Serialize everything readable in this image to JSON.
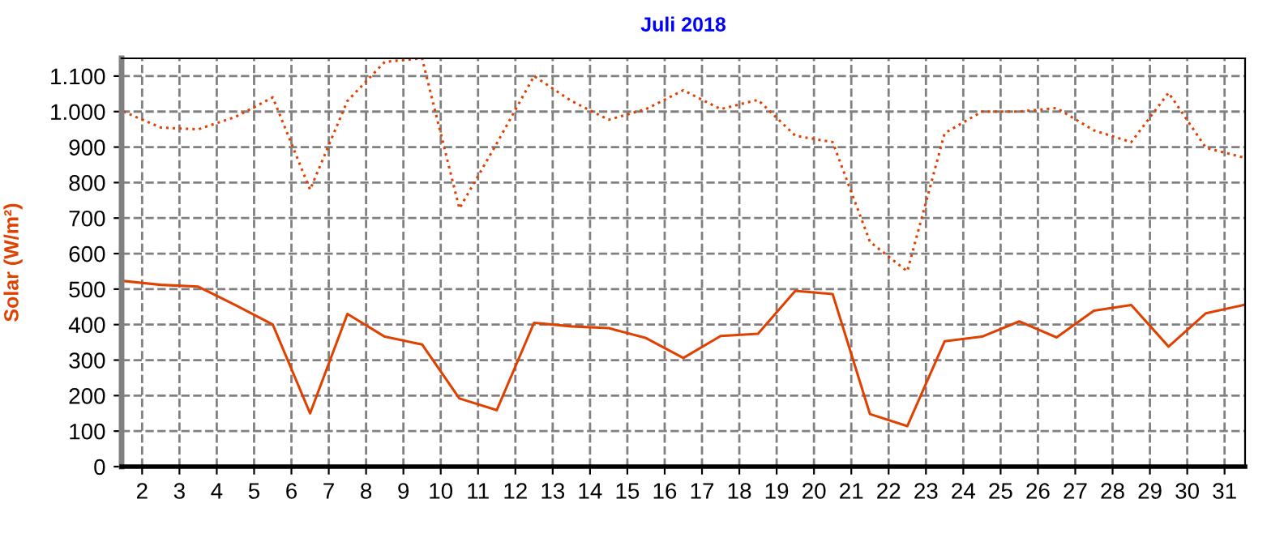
{
  "chart_data": {
    "type": "line",
    "title": "Juli 2018",
    "ylabel": "Solar (W/m²)",
    "x": [
      1.5,
      2.5,
      3.5,
      4.5,
      5.5,
      6.5,
      7.5,
      8.5,
      9.5,
      10.5,
      11.5,
      12.5,
      13.5,
      14.5,
      15.5,
      16.5,
      17.5,
      18.5,
      19.5,
      20.5,
      21.5,
      22.5,
      23.5,
      24.5,
      25.5,
      26.5,
      27.5,
      28.5,
      29.5,
      30.5,
      31.5
    ],
    "series": [
      {
        "color": "#e04000",
        "line_style": "dotted",
        "values": [
          1000,
          955,
          950,
          985,
          1040,
          780,
          1030,
          1140,
          1150,
          727,
          910,
          1100,
          1030,
          977,
          1007,
          1060,
          1007,
          1033,
          932,
          914,
          633,
          550,
          939,
          1000,
          1000,
          1010,
          947,
          914,
          1053,
          898,
          871
        ]
      },
      {
        "color": "#e04000",
        "line_style": "solid",
        "values": [
          523,
          512,
          507,
          455,
          400,
          150,
          430,
          366,
          344,
          192,
          159,
          405,
          395,
          390,
          362,
          306,
          368,
          374,
          495,
          486,
          148,
          114,
          353,
          366,
          409,
          364,
          439,
          455,
          338,
          432,
          455
        ]
      }
    ],
    "xlim": [
      1.45,
      31.55
    ],
    "ylim": [
      0,
      1150
    ],
    "xticks": [
      2,
      3,
      4,
      5,
      6,
      7,
      8,
      9,
      10,
      11,
      12,
      13,
      14,
      15,
      16,
      17,
      18,
      19,
      20,
      21,
      22,
      23,
      24,
      25,
      26,
      27,
      28,
      29,
      30,
      31
    ],
    "yticks": [
      0,
      100,
      200,
      300,
      400,
      500,
      600,
      700,
      800,
      900,
      {
        "value": 1000,
        "label": "1.000"
      },
      {
        "value": 1100,
        "label": "1.100"
      }
    ],
    "grid": true,
    "legend": false
  }
}
